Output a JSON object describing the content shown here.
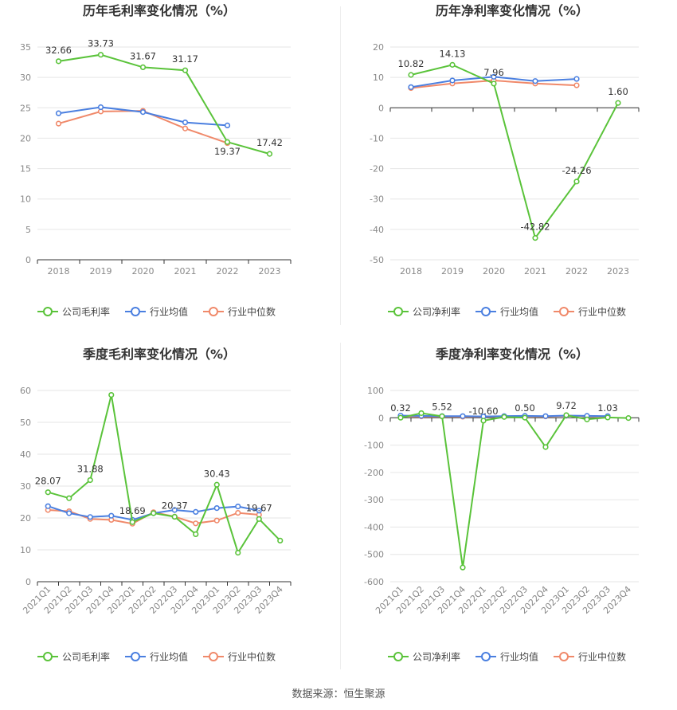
{
  "source_text": "数据来源：恒生聚源",
  "colors": {
    "company": "#5ac33a",
    "avg": "#4a7fe0",
    "median": "#f0896a",
    "grid": "#e6e6e6",
    "axis": "#333333"
  },
  "legend": {
    "avg": "行业均值",
    "median": "行业中位数"
  },
  "chart_data": [
    {
      "type": "line",
      "title": "历年毛利率变化情况（%）",
      "company_label": "公司毛利率",
      "categories": [
        "2018",
        "2019",
        "2020",
        "2021",
        "2022",
        "2023"
      ],
      "ylim": [
        0,
        35
      ],
      "yticks": [
        0,
        5,
        10,
        15,
        20,
        25,
        30,
        35
      ],
      "grid": true,
      "legend_position": "bottom",
      "series": [
        {
          "name": "公司毛利率",
          "key": "company",
          "values": [
            32.66,
            33.73,
            31.67,
            31.17,
            19.37,
            17.42
          ],
          "labels": [
            "32.66",
            "33.73",
            "31.67",
            "31.17",
            "19.37",
            "17.42"
          ]
        },
        {
          "name": "行业均值",
          "key": "avg",
          "values": [
            24.1,
            25.1,
            24.3,
            22.6,
            22.1,
            null
          ]
        },
        {
          "name": "行业中位数",
          "key": "median",
          "values": [
            22.4,
            24.4,
            24.5,
            21.6,
            19.2,
            null
          ]
        }
      ]
    },
    {
      "type": "line",
      "title": "历年净利率变化情况（%）",
      "company_label": "公司净利率",
      "categories": [
        "2018",
        "2019",
        "2020",
        "2021",
        "2022",
        "2023"
      ],
      "ylim": [
        -50,
        20
      ],
      "yticks": [
        -50,
        -40,
        -30,
        -20,
        -10,
        0,
        10,
        20
      ],
      "grid": true,
      "legend_position": "bottom",
      "series": [
        {
          "name": "公司净利率",
          "key": "company",
          "values": [
            10.82,
            14.13,
            7.96,
            -42.82,
            -24.26,
            1.6
          ],
          "labels": [
            "10.82",
            "14.13",
            "7.96",
            "-42.82",
            "-24.26",
            "1.60"
          ]
        },
        {
          "name": "行业均值",
          "key": "avg",
          "values": [
            6.8,
            9.0,
            10.2,
            8.8,
            9.5,
            null
          ]
        },
        {
          "name": "行业中位数",
          "key": "median",
          "values": [
            6.5,
            8.0,
            9.0,
            8.0,
            7.4,
            null
          ]
        }
      ]
    },
    {
      "type": "line",
      "title": "季度毛利率变化情况（%）",
      "company_label": "公司毛利率",
      "categories": [
        "2021Q1",
        "2021Q2",
        "2021Q3",
        "2021Q4",
        "2022Q1",
        "2022Q2",
        "2022Q3",
        "2022Q4",
        "2023Q1",
        "2023Q2",
        "2023Q3",
        "2023Q4"
      ],
      "ylim": [
        0,
        60
      ],
      "yticks": [
        0,
        10,
        20,
        30,
        40,
        50,
        60
      ],
      "grid": true,
      "legend_position": "bottom",
      "series": [
        {
          "name": "公司毛利率",
          "key": "company",
          "values": [
            28.07,
            26.2,
            31.88,
            58.6,
            18.69,
            21.5,
            20.37,
            14.9,
            30.43,
            9.1,
            19.67,
            12.9
          ],
          "labels": [
            "28.07",
            "",
            "31.88",
            "",
            "18.69",
            "",
            "20.37",
            "",
            "30.43",
            "",
            "19.67",
            ""
          ]
        },
        {
          "name": "行业均值",
          "key": "avg",
          "values": [
            23.7,
            21.5,
            20.3,
            20.7,
            19.4,
            21.5,
            22.5,
            21.9,
            23.1,
            23.6,
            22.3,
            null
          ]
        },
        {
          "name": "行业中位数",
          "key": "median",
          "values": [
            22.5,
            22.1,
            19.7,
            19.4,
            18.2,
            21.8,
            20.4,
            18.3,
            19.2,
            21.6,
            21.0,
            null
          ]
        }
      ]
    },
    {
      "type": "line",
      "title": "季度净利率变化情况（%）",
      "company_label": "公司净利率",
      "categories": [
        "2021Q1",
        "2021Q2",
        "2021Q3",
        "2021Q4",
        "2022Q1",
        "2022Q2",
        "2022Q3",
        "2022Q4",
        "2023Q1",
        "2023Q2",
        "2023Q3",
        "2023Q4"
      ],
      "ylim": [
        -600,
        100
      ],
      "yticks": [
        -600,
        -500,
        -400,
        -300,
        -200,
        -100,
        0,
        100
      ],
      "grid": true,
      "legend_position": "bottom",
      "series": [
        {
          "name": "公司净利率",
          "key": "company",
          "values": [
            0.32,
            17,
            5.52,
            -548,
            -10.6,
            3,
            0.5,
            -107,
            9.72,
            -6,
            1.03,
            -1
          ],
          "labels": [
            "0.32",
            "",
            "5.52",
            "",
            "-10.60",
            "",
            "0.50",
            "",
            "9.72",
            "",
            "1.03",
            ""
          ]
        },
        {
          "name": "行业均值",
          "key": "avg",
          "values": [
            8,
            7,
            6,
            6,
            5,
            6,
            7,
            6,
            8,
            7,
            6,
            null
          ]
        },
        {
          "name": "行业中位数",
          "key": "median",
          "values": [
            6,
            5,
            5,
            4,
            4,
            5,
            6,
            5,
            7,
            6,
            5,
            null
          ]
        }
      ]
    }
  ]
}
